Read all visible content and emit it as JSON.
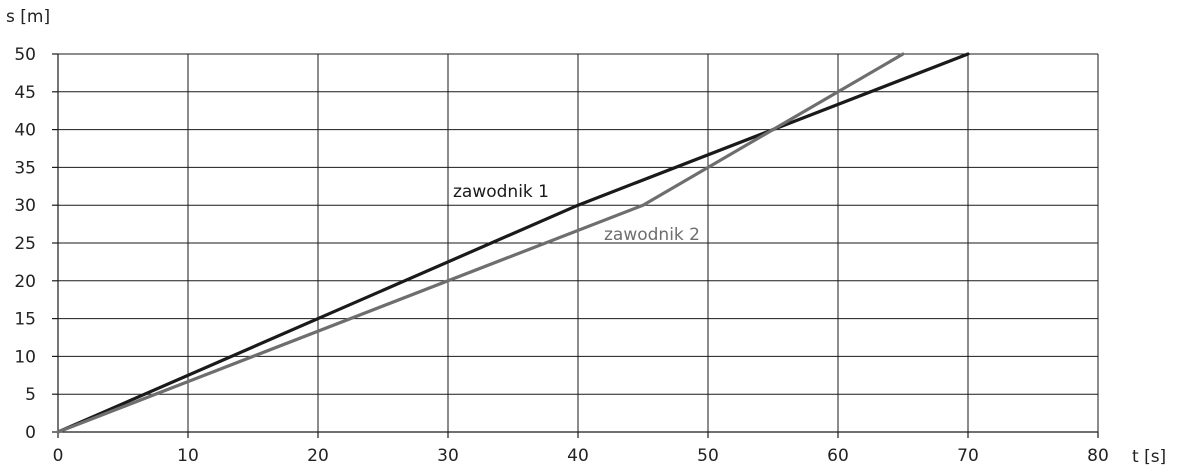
{
  "chart_data": {
    "type": "line",
    "xlabel": "t [s]",
    "ylabel": "s [m]",
    "xlim": [
      0,
      80
    ],
    "ylim": [
      0,
      50
    ],
    "x_ticks": [
      0,
      10,
      20,
      30,
      40,
      50,
      60,
      70,
      80
    ],
    "y_ticks": [
      0,
      5,
      10,
      15,
      20,
      25,
      30,
      35,
      40,
      45,
      50
    ],
    "grid": {
      "vertical": true,
      "horizontal": true
    },
    "series": [
      {
        "name": "zawodnik 1",
        "color": "#1a1a1a",
        "x": [
          0,
          40,
          70
        ],
        "y": [
          0,
          30,
          50
        ]
      },
      {
        "name": "zawodnik 2",
        "color": "#6e6e6e",
        "x": [
          0,
          45,
          65
        ],
        "y": [
          0,
          30,
          50
        ]
      }
    ]
  }
}
